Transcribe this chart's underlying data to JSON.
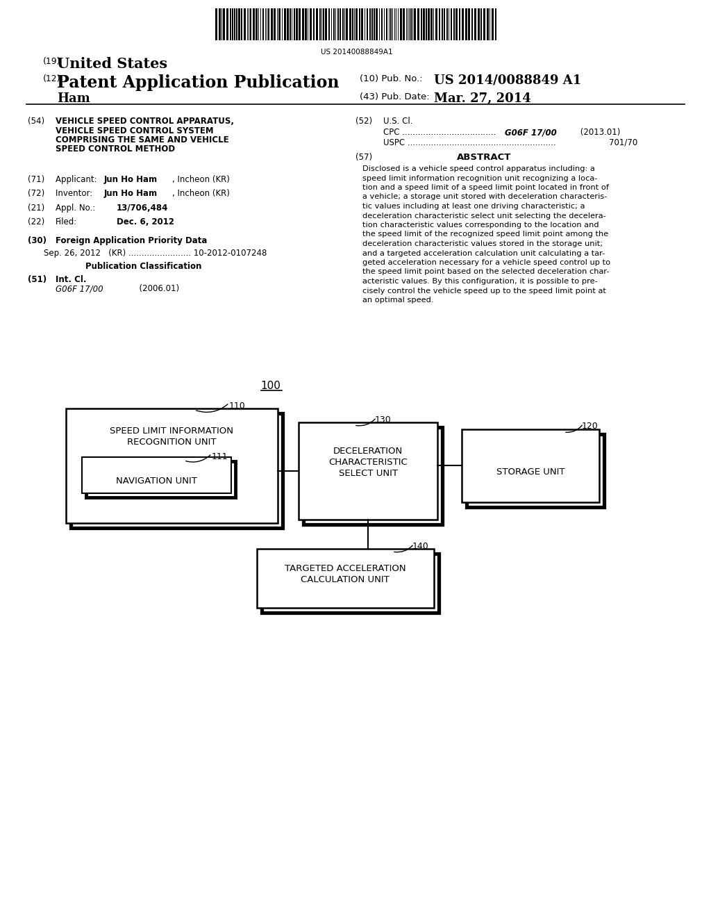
{
  "barcode_text": "US 20140088849A1",
  "title_19_num": "(19)",
  "title_19_text": "United States",
  "title_12_num": "(12)",
  "title_12_text": "Patent Application Publication",
  "pub_no_label": "(10) Pub. No.:",
  "pub_no_value": "US 2014/0088849 A1",
  "inventor_label": "Ham",
  "pub_date_label": "(43) Pub. Date:",
  "pub_date_value": "Mar. 27, 2014",
  "section_54_label": "(54)",
  "section_54_lines": [
    "VEHICLE SPEED CONTROL APPARATUS,",
    "VEHICLE SPEED CONTROL SYSTEM",
    "COMPRISING THE SAME AND VEHICLE",
    "SPEED CONTROL METHOD"
  ],
  "section_71_label": "(71)",
  "section_71_pre": "Applicant:",
  "section_71_bold": "Jun Ho Ham",
  "section_71_post": ", Incheon (KR)",
  "section_72_label": "(72)",
  "section_72_pre": "Inventor:",
  "section_72_bold": "Jun Ho Ham",
  "section_72_post": ", Incheon (KR)",
  "section_21_label": "(21)",
  "section_21_pre": "Appl. No.:",
  "section_21_bold": "13/706,484",
  "section_22_label": "(22)",
  "section_22_pre": "Filed:",
  "section_22_bold": "Dec. 6, 2012",
  "section_30_label": "(30)",
  "section_30_title": "Foreign Application Priority Data",
  "section_30_text": "Sep. 26, 2012   (KR) ........................ 10-2012-0107248",
  "pub_class_title": "Publication Classification",
  "section_51_label": "(51)",
  "section_51_line1": "Int. Cl.",
  "section_51_line2_italic": "G06F 17/00",
  "section_51_line2_normal": "          (2006.01)",
  "section_52_label": "(52)",
  "section_52_line1": "U.S. Cl.",
  "section_52_cpc_dots": "CPC ....................................",
  "section_52_cpc_italic": " G06F 17/00",
  "section_52_cpc_normal": " (2013.01)",
  "section_52_uspc_dots": "USPC .........................................................",
  "section_52_uspc_num": " 701/70",
  "section_57_label": "(57)",
  "section_57_title": "ABSTRACT",
  "abstract_lines": [
    "Disclosed is a vehicle speed control apparatus including: a",
    "speed limit information recognition unit recognizing a loca-",
    "tion and a speed limit of a speed limit point located in front of",
    "a vehicle; a storage unit stored with deceleration characteris-",
    "tic values including at least one driving characteristic; a",
    "deceleration characteristic select unit selecting the decelera-",
    "tion characteristic values corresponding to the location and",
    "the speed limit of the recognized speed limit point among the",
    "deceleration characteristic values stored in the storage unit;",
    "and a targeted acceleration calculation unit calculating a tar-",
    "geted acceleration necessary for a vehicle speed control up to",
    "the speed limit point based on the selected deceleration char-",
    "acteristic values. By this configuration, it is possible to pre-",
    "cisely control the vehicle speed up to the speed limit point at",
    "an optimal speed."
  ],
  "diagram_label": "100",
  "box110_label": "110",
  "box110_text1": "SPEED LIMIT INFORMATION",
  "box110_text2": "RECOGNITION UNIT",
  "box111_label": "111",
  "box111_text": "NAVIGATION UNIT",
  "box130_label": "130",
  "box130_text1": "DECELERATION",
  "box130_text2": "CHARACTERISTIC",
  "box130_text3": "SELECT UNIT",
  "box120_label": "120",
  "box120_text": "STORAGE UNIT",
  "box140_label": "140",
  "box140_text1": "TARGETED ACCELERATION",
  "box140_text2": "CALCULATION UNIT",
  "bg_color": "#ffffff",
  "text_color": "#000000"
}
